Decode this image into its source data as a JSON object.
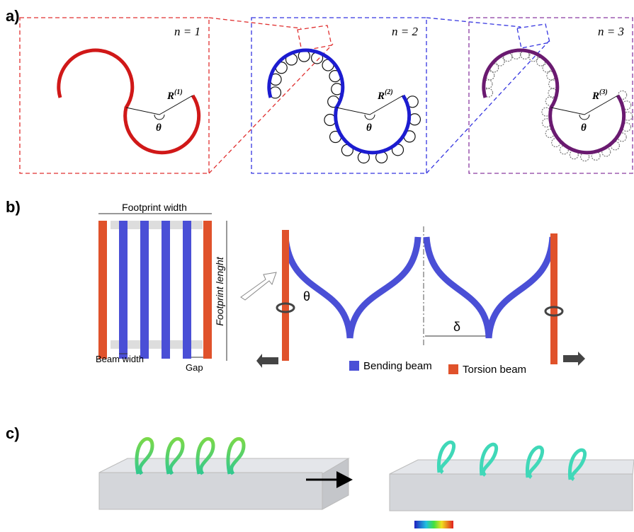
{
  "panel_a": {
    "label": "a)",
    "subpanels": [
      {
        "order": "n = 1",
        "radius": "R",
        "radius_index": "(1)",
        "angle": "θ"
      },
      {
        "order": "n = 2",
        "radius": "R",
        "radius_index": "(2)",
        "angle": "θ"
      },
      {
        "order": "n = 3",
        "radius": "R",
        "radius_index": "(3)",
        "angle": "θ"
      }
    ]
  },
  "panel_b": {
    "label": "b)",
    "footprint_width": "Footprint width",
    "footprint_length": "Footprint lenght",
    "beam_width": "Beam width",
    "gap": "Gap",
    "twist_angle": "θ",
    "displacement": "δ",
    "legend": [
      {
        "name": "Bending beam",
        "color": "#4a4fd6"
      },
      {
        "name": "Torsion beam",
        "color": "#e0522b"
      }
    ]
  },
  "panel_c": {
    "label": "c)"
  }
}
